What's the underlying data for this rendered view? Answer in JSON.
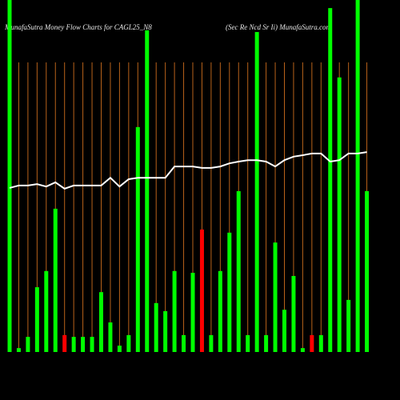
{
  "chart_data": {
    "type": "bar",
    "title": "MunafaSutra  Money Flow  Charts for CAGL25_N8",
    "subtitle": "(Sec Re    Ncd Sr Ii) MunafaSutra.com",
    "categories": [
      null,
      null,
      null,
      null,
      null,
      null,
      null,
      null,
      null,
      null,
      null,
      null,
      null,
      null,
      null,
      null,
      null,
      null,
      null,
      null,
      null,
      null,
      null,
      null,
      null,
      null,
      null,
      null,
      null,
      null,
      null,
      null,
      null,
      null,
      null,
      null,
      null,
      null,
      null,
      null
    ],
    "values": [
      100,
      1.1,
      4.3,
      18.4,
      23,
      40.7,
      4.8,
      4.3,
      4.3,
      4.3,
      17,
      8.4,
      1.8,
      4.8,
      63.9,
      91.4,
      13.9,
      11.6,
      23,
      4.8,
      22.5,
      34.8,
      4.8,
      23,
      33.9,
      45.7,
      4.8,
      90.9,
      4.8,
      31.1,
      12,
      21.6,
      1.1,
      4.8,
      4.8,
      97.7,
      78,
      14.8,
      100,
      45.7
    ],
    "colors": [
      "#00ff00",
      "#00ff00",
      "#00ff00",
      "#00ff00",
      "#00ff00",
      "#00ff00",
      "#ff0000",
      "#00ff00",
      "#00ff00",
      "#00ff00",
      "#00ff00",
      "#00ff00",
      "#00ff00",
      "#00ff00",
      "#00ff00",
      "#00ff00",
      "#00ff00",
      "#00ff00",
      "#00ff00",
      "#00ff00",
      "#00ff00",
      "#ff0000",
      "#00ff00",
      "#00ff00",
      "#00ff00",
      "#00ff00",
      "#00ff00",
      "#00ff00",
      "#00ff00",
      "#00ff00",
      "#00ff00",
      "#00ff00",
      "#00ff00",
      "#ff0000",
      "#00ff00",
      "#00ff00",
      "#00ff00",
      "#00ff00",
      "#00ff00",
      "#00ff00"
    ],
    "line": {
      "color": "#ffffff",
      "values": [
        46.6,
        47.3,
        47.3,
        47.7,
        47.0,
        48.2,
        46.4,
        47.3,
        47.3,
        47.3,
        47.3,
        49.5,
        47.0,
        49.1,
        49.5,
        49.5,
        49.5,
        49.5,
        52.7,
        52.7,
        52.7,
        52.3,
        52.3,
        52.7,
        53.6,
        54.1,
        54.5,
        54.5,
        54.1,
        52.7,
        54.5,
        55.5,
        55.9,
        56.4,
        56.4,
        54.1,
        54.5,
        56.4,
        56.4,
        56.8
      ]
    },
    "ylim": [
      0,
      100
    ],
    "grid_color": "#b8621a"
  }
}
